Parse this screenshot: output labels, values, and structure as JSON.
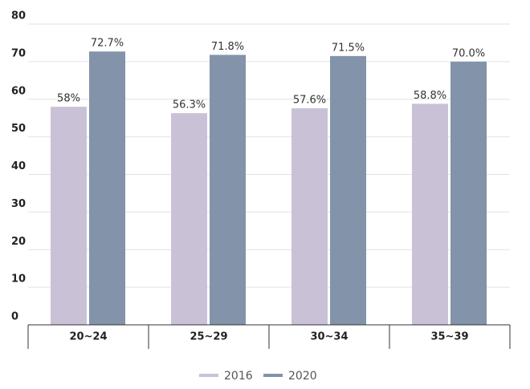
{
  "chart_data": {
    "type": "bar",
    "categories": [
      "20~24",
      "25~29",
      "30~34",
      "35~39"
    ],
    "series": [
      {
        "name": "2016",
        "color": "#c9c2d7",
        "values": [
          58,
          56.3,
          57.6,
          58.8
        ],
        "value_labels": [
          "58%",
          "56.3%",
          "57.6%",
          "58.8%"
        ]
      },
      {
        "name": "2020",
        "color": "#8293aa",
        "values": [
          72.7,
          71.8,
          71.5,
          70.0
        ],
        "value_labels": [
          "72.7%",
          "71.8%",
          "71.5%",
          "70.0%"
        ]
      }
    ],
    "ylim": [
      0,
      80
    ],
    "yticks": [
      0,
      10,
      20,
      30,
      40,
      50,
      60,
      70,
      80
    ],
    "grid": true,
    "legend": "bottom"
  }
}
